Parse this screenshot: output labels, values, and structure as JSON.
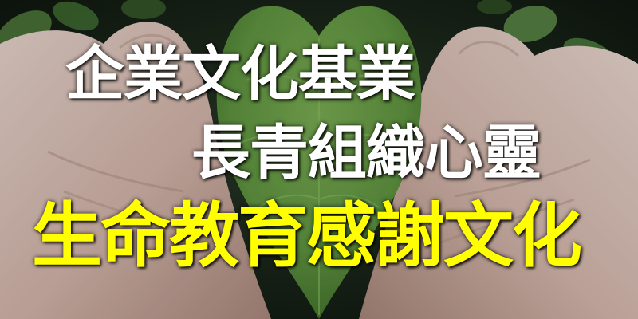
{
  "banner": {
    "line_1": "企業文化基業",
    "line_2": "長青組織心靈",
    "line_3": "生命教育感謝文化"
  },
  "colors": {
    "headline_white": "#ffffff",
    "headline_yellow": "#ffff00",
    "leaf_green": "#5f9440",
    "background_dark": "#0d140d"
  }
}
